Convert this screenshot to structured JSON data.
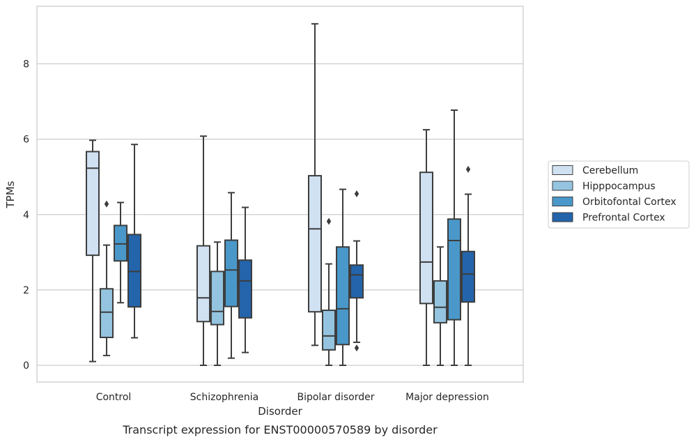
{
  "chart_data": {
    "type": "boxplot",
    "title": "Transcript expression for ENST00000570589 by disorder",
    "xlabel": "Disorder",
    "ylabel": "TPMs",
    "ylim": [
      -0.45,
      9.5
    ],
    "yticks": [
      0,
      2,
      4,
      6,
      8
    ],
    "grid": "horizontal",
    "legend_position": "right",
    "categories": [
      "Control",
      "Schizophrenia",
      "Bipolar disorder",
      "Major depression"
    ],
    "series": [
      {
        "name": "Cerebellum",
        "color": "#d0e1f2",
        "boxes": [
          {
            "whisker_low": 0.1,
            "q1": 2.92,
            "median": 5.23,
            "q3": 5.67,
            "whisker_high": 5.97,
            "outliers": []
          },
          {
            "whisker_low": 0.0,
            "q1": 1.16,
            "median": 1.79,
            "q3": 3.17,
            "whisker_high": 6.08,
            "outliers": []
          },
          {
            "whisker_low": 0.53,
            "q1": 1.42,
            "median": 3.62,
            "q3": 5.03,
            "whisker_high": 9.06,
            "outliers": []
          },
          {
            "whisker_low": 0.0,
            "q1": 1.64,
            "median": 2.74,
            "q3": 5.12,
            "whisker_high": 6.25,
            "outliers": []
          }
        ]
      },
      {
        "name": "Hipppocampus",
        "color": "#94c4df",
        "boxes": [
          {
            "whisker_low": 0.26,
            "q1": 0.74,
            "median": 1.41,
            "q3": 2.03,
            "whisker_high": 3.19,
            "outliers": [
              4.28
            ]
          },
          {
            "whisker_low": 0.0,
            "q1": 1.08,
            "median": 1.43,
            "q3": 2.49,
            "whisker_high": 3.27,
            "outliers": []
          },
          {
            "whisker_low": 0.0,
            "q1": 0.41,
            "median": 0.78,
            "q3": 1.46,
            "whisker_high": 2.69,
            "outliers": [
              3.82
            ]
          },
          {
            "whisker_low": 0.0,
            "q1": 1.13,
            "median": 1.54,
            "q3": 2.24,
            "whisker_high": 3.14,
            "outliers": []
          }
        ]
      },
      {
        "name": "Orbitofontal Cortex",
        "color": "#4a98c9",
        "boxes": [
          {
            "whisker_low": 1.66,
            "q1": 2.77,
            "median": 3.22,
            "q3": 3.71,
            "whisker_high": 4.32,
            "outliers": []
          },
          {
            "whisker_low": 0.19,
            "q1": 1.56,
            "median": 2.53,
            "q3": 3.32,
            "whisker_high": 4.58,
            "outliers": []
          },
          {
            "whisker_low": 0.0,
            "q1": 0.55,
            "median": 1.5,
            "q3": 3.14,
            "whisker_high": 4.67,
            "outliers": []
          },
          {
            "whisker_low": 0.0,
            "q1": 1.21,
            "median": 3.31,
            "q3": 3.88,
            "whisker_high": 6.77,
            "outliers": []
          }
        ]
      },
      {
        "name": "Prefrontal Cortex",
        "color": "#2464ab",
        "boxes": [
          {
            "whisker_low": 0.73,
            "q1": 1.55,
            "median": 2.49,
            "q3": 3.47,
            "whisker_high": 5.86,
            "outliers": []
          },
          {
            "whisker_low": 0.34,
            "q1": 1.26,
            "median": 2.24,
            "q3": 2.79,
            "whisker_high": 4.19,
            "outliers": []
          },
          {
            "whisker_low": 0.61,
            "q1": 1.79,
            "median": 2.4,
            "q3": 2.66,
            "whisker_high": 3.3,
            "outliers": [
              4.55,
              0.46
            ]
          },
          {
            "whisker_low": 0.0,
            "q1": 1.68,
            "median": 2.42,
            "q3": 3.02,
            "whisker_high": 4.54,
            "outliers": [
              5.2
            ]
          }
        ]
      }
    ]
  }
}
